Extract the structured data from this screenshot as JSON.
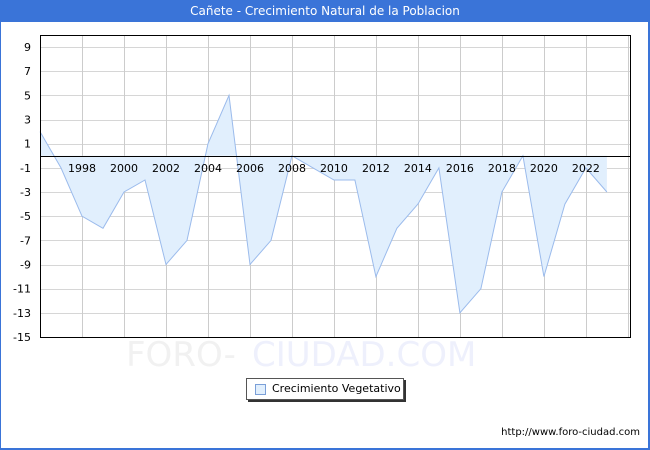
{
  "window": {
    "title": "Cañete - Crecimiento Natural de la Poblacion"
  },
  "watermark": {
    "part1": "FORO-",
    "part2": "CIUDAD.COM"
  },
  "legend": {
    "items": [
      {
        "label": "Crecimiento Vegetativo",
        "color": "#e1effd",
        "border": "#7a9fd8"
      }
    ]
  },
  "footer": {
    "url": "http://www.foro-ciudad.com"
  },
  "colors": {
    "titlebar": "#3a74d8",
    "area_fill": "#e1effd",
    "line": "#9bbbec",
    "grid": "#d6d6d6"
  },
  "chart_data": {
    "type": "area",
    "title": "Cañete - Crecimiento Natural de la Poblacion",
    "xlabel": "",
    "ylabel": "",
    "x": [
      1996,
      1997,
      1998,
      1999,
      2000,
      2001,
      2002,
      2003,
      2004,
      2005,
      2006,
      2007,
      2008,
      2009,
      2010,
      2011,
      2012,
      2013,
      2014,
      2015,
      2016,
      2017,
      2018,
      2019,
      2020,
      2021,
      2022,
      2023
    ],
    "series": [
      {
        "name": "Crecimiento Vegetativo",
        "values": [
          2,
          -1,
          -5,
          -6,
          -3,
          -2,
          -9,
          -7,
          1,
          5,
          -9,
          -7,
          0,
          -1,
          -2,
          -2,
          -10,
          -6,
          -4,
          -1,
          -13,
          -11,
          -3,
          0,
          -10,
          -4,
          -1,
          -3
        ]
      }
    ],
    "x_tick_labels": [
      "1998",
      "2000",
      "2002",
      "2004",
      "2006",
      "2008",
      "2010",
      "2012",
      "2014",
      "2016",
      "2018",
      "2020",
      "2022"
    ],
    "y_tick_labels": [
      "9",
      "7",
      "5",
      "3",
      "1",
      "-1",
      "-3",
      "-5",
      "-7",
      "-9",
      "-11",
      "-13",
      "-15"
    ],
    "ylim": [
      -15,
      10
    ],
    "xlim": [
      1996,
      2024.1
    ],
    "grid": true,
    "legend_position": "bottom-center"
  }
}
